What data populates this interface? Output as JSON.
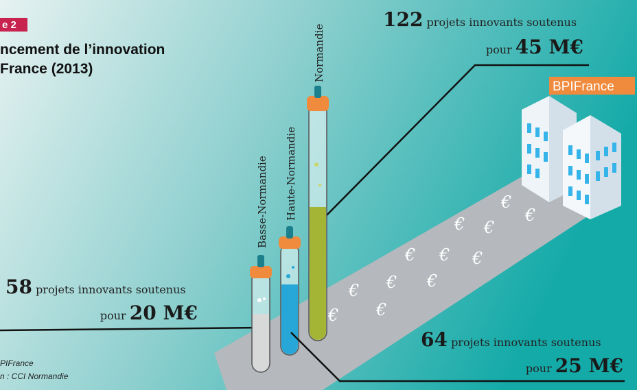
{
  "header": {
    "tag": "e 2",
    "title_lines": [
      "ncement de l’innovation",
      "France (2013)"
    ]
  },
  "tubes": [
    {
      "label": "Basse-Normandie"
    },
    {
      "label": "Haute-Normandie"
    },
    {
      "label": "Normandie"
    }
  ],
  "callouts": [
    {
      "count": 122,
      "text": "projets innovants soutenus",
      "pour": "pour",
      "amount": "45 M€"
    },
    {
      "count": 58,
      "text": "projets innovants soutenus",
      "pour": "pour",
      "amount": "20 M€"
    },
    {
      "count": 64,
      "text": "projets innovants soutenus",
      "pour": "pour",
      "amount": "25 M€"
    }
  ],
  "building_flag": "BPIFrance",
  "euro_symbol": "€",
  "source_lines": [
    "PIFrance",
    "n : CCI Normandie"
  ]
}
